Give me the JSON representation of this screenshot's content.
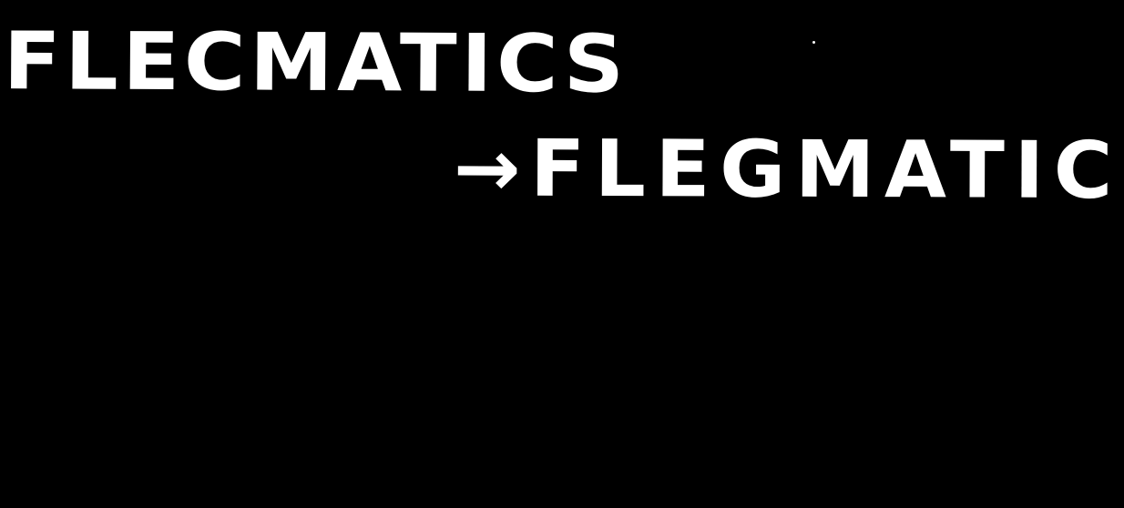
{
  "handwriting": {
    "line1": "FLECMATICS",
    "line2": "→FLEGMATIC"
  },
  "colors": {
    "background": "#000000",
    "ink": "#ffffff"
  }
}
